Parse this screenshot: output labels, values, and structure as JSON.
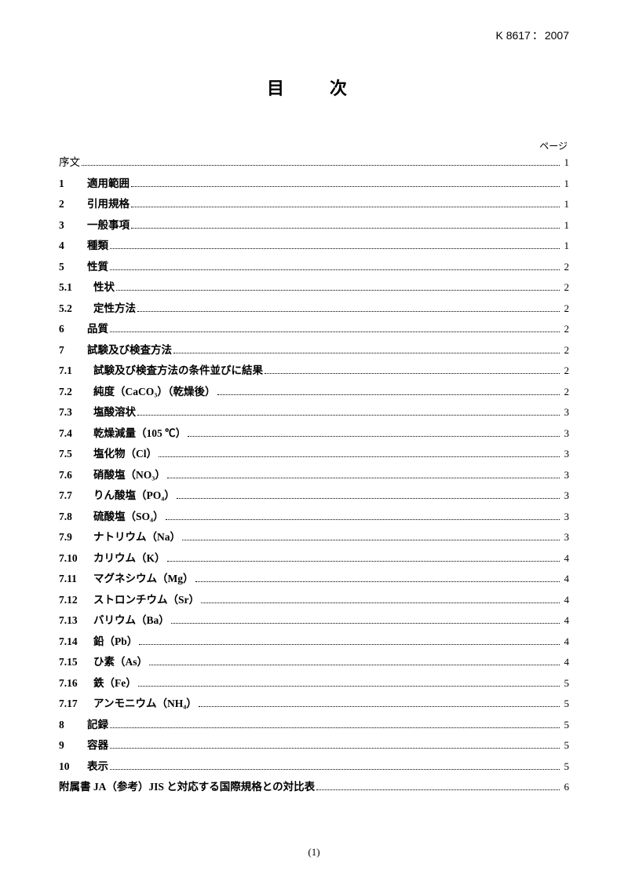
{
  "header": {
    "code": "K 8617",
    "year": "2007"
  },
  "title": "目　次",
  "page_label": "ページ",
  "footer": "(1)",
  "toc": [
    {
      "num": "",
      "text": "序文",
      "page": "1",
      "bold": false
    },
    {
      "num": "1",
      "text": "適用範囲",
      "page": "1",
      "bold": true
    },
    {
      "num": "2",
      "text": "引用規格",
      "page": "1",
      "bold": true
    },
    {
      "num": "3",
      "text": "一般事項",
      "page": "1",
      "bold": true
    },
    {
      "num": "4",
      "text": "種類",
      "page": "1",
      "bold": true
    },
    {
      "num": "5",
      "text": "性質",
      "page": "2",
      "bold": true
    },
    {
      "num": "5.1",
      "text": "性状",
      "page": "2",
      "bold": true,
      "sub": true
    },
    {
      "num": "5.2",
      "text": "定性方法",
      "page": "2",
      "bold": true,
      "sub": true
    },
    {
      "num": "6",
      "text": "品質",
      "page": "2",
      "bold": true
    },
    {
      "num": "7",
      "text": "試験及び検査方法",
      "page": "2",
      "bold": true
    },
    {
      "num": "7.1",
      "text": "試験及び検査方法の条件並びに結果",
      "page": "2",
      "bold": true,
      "sub": true
    },
    {
      "num": "7.2",
      "text": "純度（CaCO₃）（乾燥後）",
      "page": "2",
      "bold": true,
      "sub": true
    },
    {
      "num": "7.3",
      "text": "塩酸溶状",
      "page": "3",
      "bold": true,
      "sub": true
    },
    {
      "num": "7.4",
      "text": "乾燥減量（105 ℃）",
      "page": "3",
      "bold": true,
      "sub": true
    },
    {
      "num": "7.5",
      "text": "塩化物（Cl）",
      "page": "3",
      "bold": true,
      "sub": true
    },
    {
      "num": "7.6",
      "text": "硝酸塩（NO₃）",
      "page": "3",
      "bold": true,
      "sub": true
    },
    {
      "num": "7.7",
      "text": "りん酸塩（PO₄）",
      "page": "3",
      "bold": true,
      "sub": true
    },
    {
      "num": "7.8",
      "text": "硫酸塩（SO₄）",
      "page": "3",
      "bold": true,
      "sub": true
    },
    {
      "num": "7.9",
      "text": "ナトリウム（Na）",
      "page": "3",
      "bold": true,
      "sub": true
    },
    {
      "num": "7.10",
      "text": "カリウム（K）",
      "page": "4",
      "bold": true,
      "sub": true
    },
    {
      "num": "7.11",
      "text": "マグネシウム（Mg）",
      "page": "4",
      "bold": true,
      "sub": true
    },
    {
      "num": "7.12",
      "text": "ストロンチウム（Sr）",
      "page": "4",
      "bold": true,
      "sub": true
    },
    {
      "num": "7.13",
      "text": "バリウム（Ba）",
      "page": "4",
      "bold": true,
      "sub": true
    },
    {
      "num": "7.14",
      "text": "鉛（Pb）",
      "page": "4",
      "bold": true,
      "sub": true
    },
    {
      "num": "7.15",
      "text": "ひ素（As）",
      "page": "4",
      "bold": true,
      "sub": true
    },
    {
      "num": "7.16",
      "text": "鉄（Fe）",
      "page": "5",
      "bold": true,
      "sub": true
    },
    {
      "num": "7.17",
      "text": "アンモニウム（NH₄）",
      "page": "5",
      "bold": true,
      "sub": true
    },
    {
      "num": "8",
      "text": "記録",
      "page": "5",
      "bold": true
    },
    {
      "num": "9",
      "text": "容器",
      "page": "5",
      "bold": true
    },
    {
      "num": "10",
      "text": "表示",
      "page": "5",
      "bold": true
    },
    {
      "num": "",
      "text": "附属書 JA（参考）JIS と対応する国際規格との対比表",
      "page": "6",
      "bold": true
    }
  ]
}
